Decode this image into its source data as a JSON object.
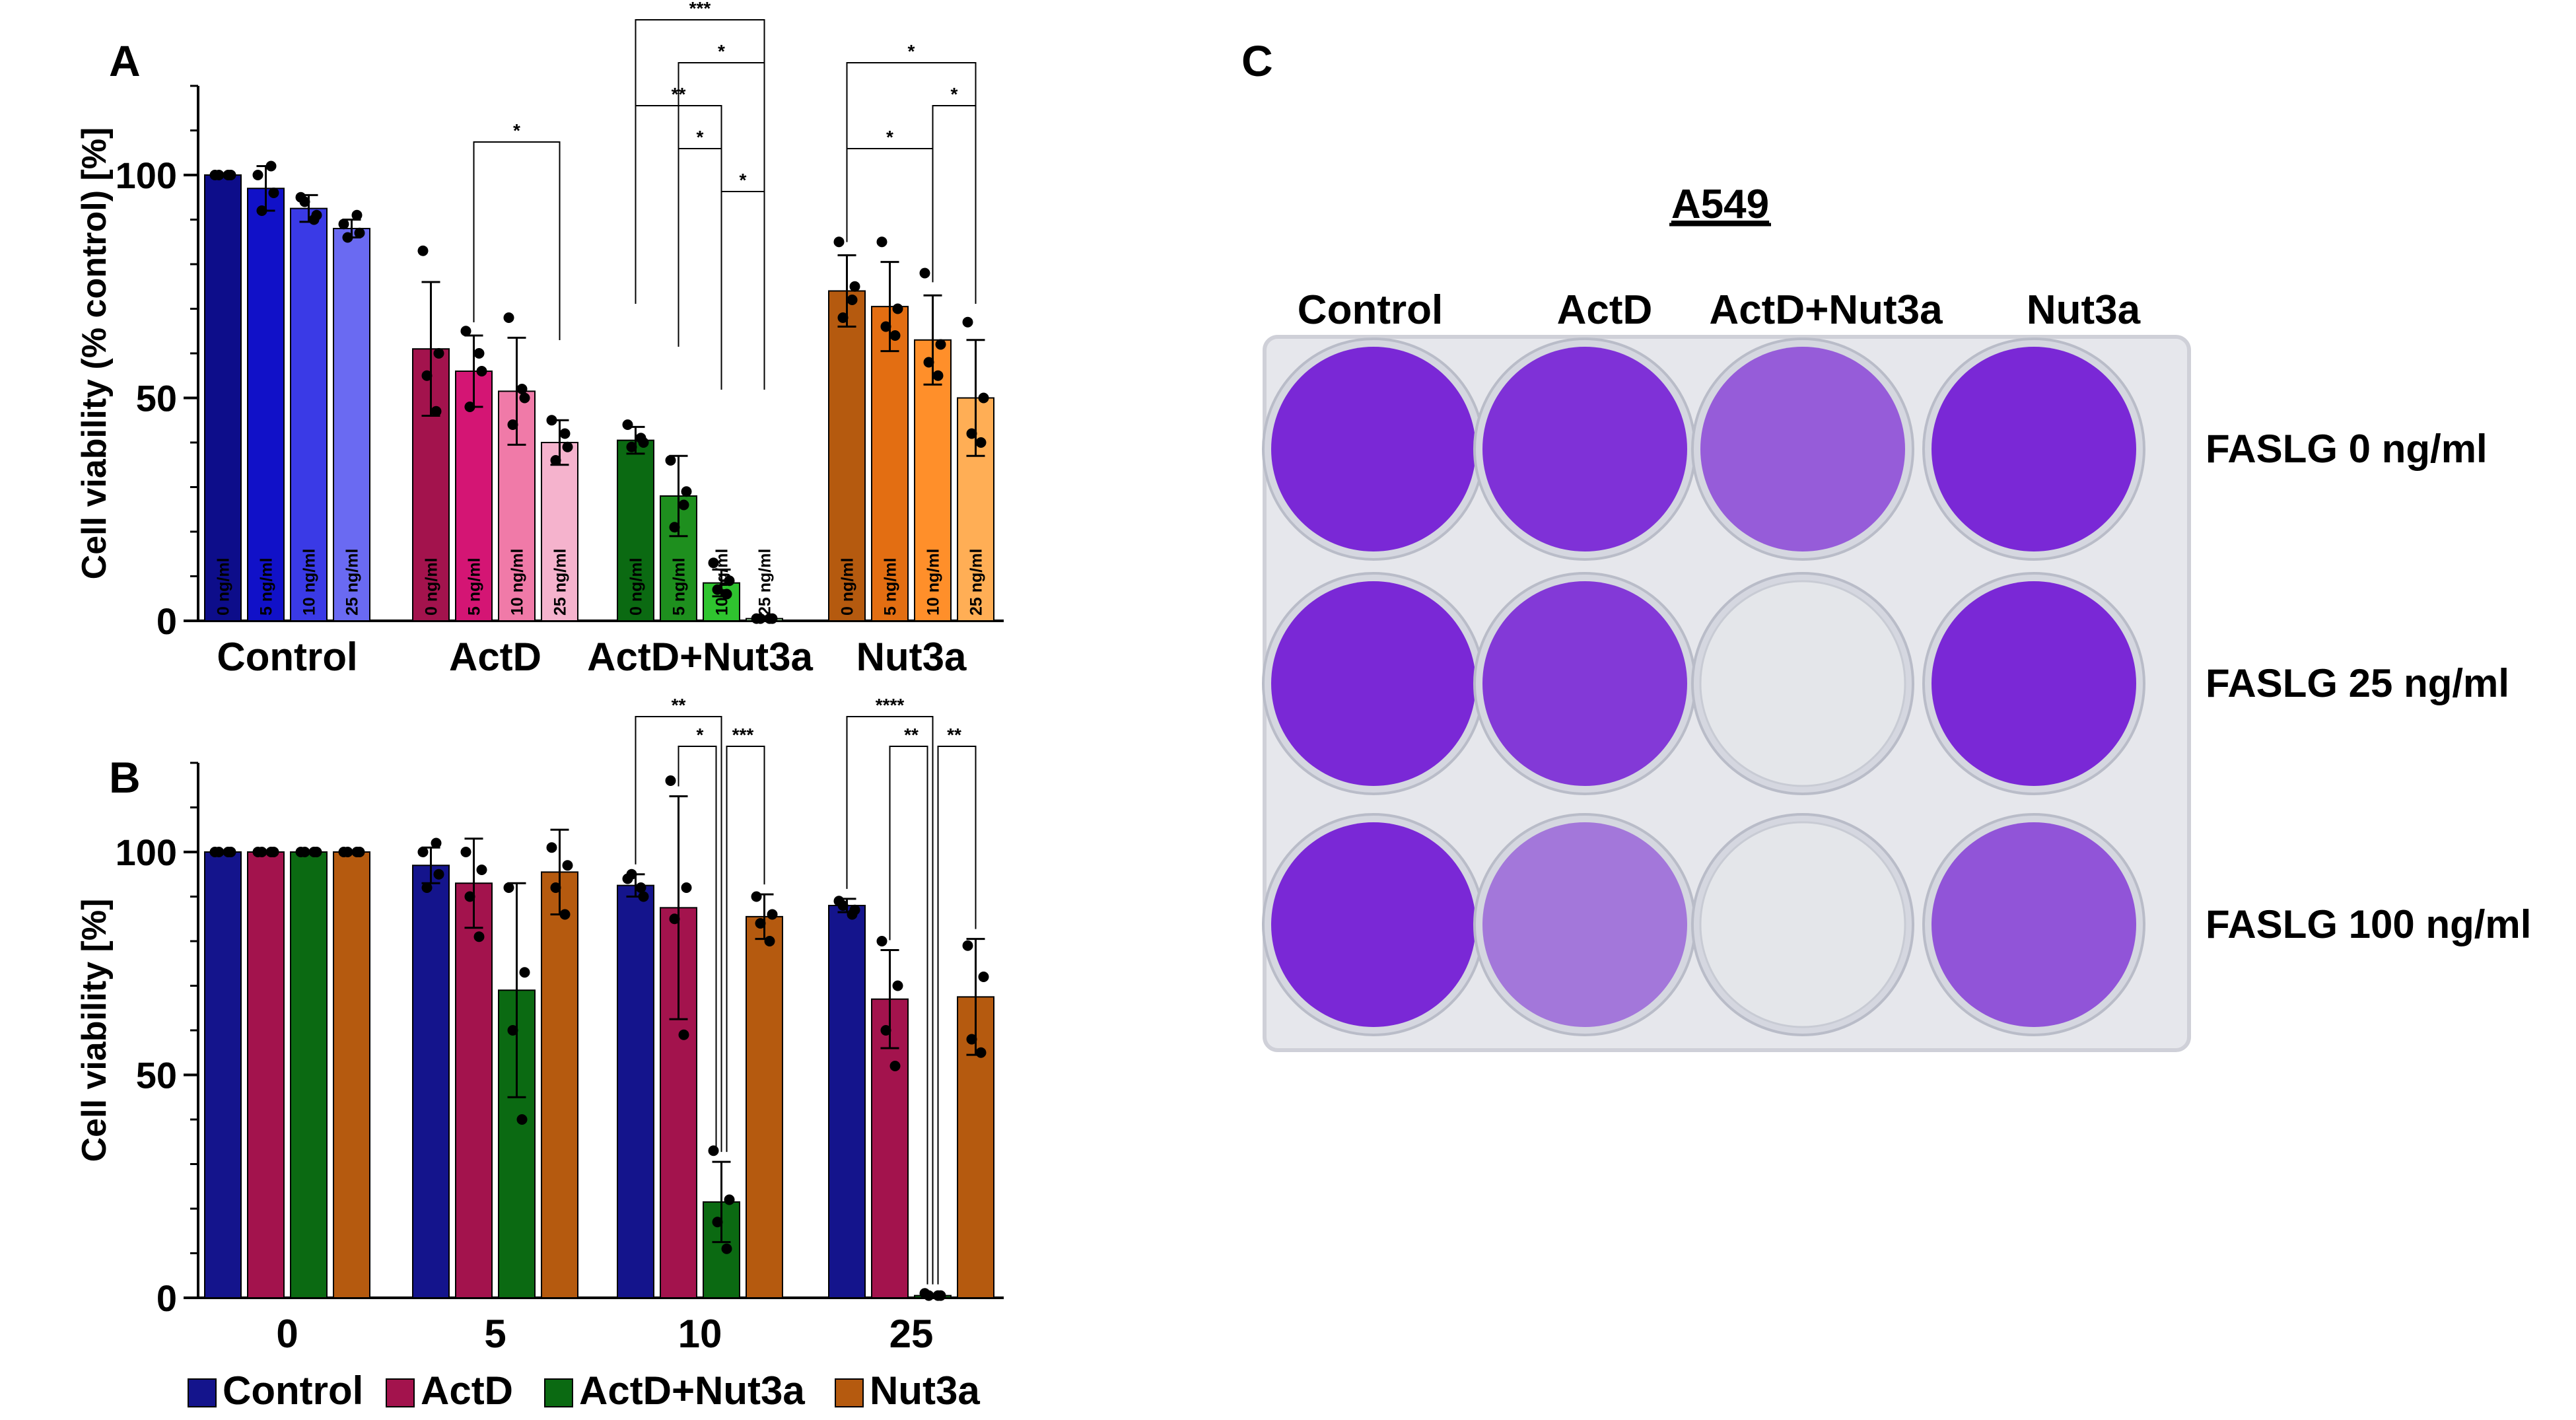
{
  "panels": {
    "a": "A",
    "b": "B",
    "c": "C"
  },
  "chart_data": [
    {
      "type": "bar",
      "panel": "A",
      "ylabel": "Cell viability (% control) [%]",
      "ylim": [
        0,
        120
      ],
      "yticks": [
        0,
        50,
        100
      ],
      "groups": [
        "Control",
        "ActD",
        "ActD+Nut3a",
        "Nut3a"
      ],
      "bar_labels": [
        "0 ng/ml",
        "5 ng/ml",
        "10 ng/ml",
        "25 ng/ml"
      ],
      "series": [
        {
          "group": "Control",
          "values": [
            100,
            97,
            92.5,
            88
          ],
          "errors": [
            0,
            5,
            3,
            2
          ],
          "colors": [
            "#0d0d8a",
            "#1111c8",
            "#3a3ae6",
            "#6a6af2"
          ],
          "points": [
            [
              100,
              100,
              100,
              100
            ],
            [
              100,
              96,
              92,
              102
            ],
            [
              95,
              91,
              94,
              90
            ],
            [
              89,
              87,
              86,
              91
            ]
          ]
        },
        {
          "group": "ActD",
          "values": [
            61,
            56,
            51.5,
            40
          ],
          "errors": [
            15,
            8,
            12,
            5
          ],
          "colors": [
            "#a3134d",
            "#d41574",
            "#f07aa8",
            "#f5b3cd"
          ],
          "points": [
            [
              83,
              60,
              55,
              47
            ],
            [
              65,
              56,
              48,
              60
            ],
            [
              68,
              50,
              44,
              52
            ],
            [
              45,
              39,
              36,
              42
            ]
          ]
        },
        {
          "group": "ActD+Nut3a",
          "values": [
            40.5,
            28,
            8.5,
            0.5
          ],
          "errors": [
            3,
            9,
            3,
            0.5
          ],
          "colors": [
            "#0b6a12",
            "#1e8f1e",
            "#2fc42f",
            "#9be39b"
          ],
          "points": [
            [
              44,
              40,
              39,
              41
            ],
            [
              36,
              29,
              21,
              26
            ],
            [
              13,
              9,
              7,
              6
            ],
            [
              0.5,
              0.5,
              0.5,
              0.5
            ]
          ]
        },
        {
          "group": "Nut3a",
          "values": [
            74,
            70.5,
            63,
            50
          ],
          "errors": [
            8,
            10,
            10,
            13
          ],
          "colors": [
            "#b55a0f",
            "#e36e12",
            "#ff8f2a",
            "#ffae55"
          ],
          "points": [
            [
              85,
              75,
              68,
              72
            ],
            [
              85,
              70,
              66,
              64
            ],
            [
              78,
              62,
              58,
              55
            ],
            [
              67,
              50,
              42,
              40
            ]
          ]
        }
      ],
      "significance": [
        {
          "group": "ActD",
          "from": 1,
          "to": 3,
          "label": "*"
        },
        {
          "group": "ActD+Nut3a",
          "from": 0,
          "to": 3,
          "label": "***"
        },
        {
          "group": "ActD+Nut3a",
          "from": 1,
          "to": 3,
          "label": "*"
        },
        {
          "group": "ActD+Nut3a",
          "from": 0,
          "to": 2,
          "label": "**"
        },
        {
          "group": "ActD+Nut3a",
          "from": 1,
          "to": 2,
          "label": "*"
        },
        {
          "group": "ActD+Nut3a",
          "from": 2,
          "to": 3,
          "label": "*"
        },
        {
          "group": "Nut3a",
          "from": 0,
          "to": 3,
          "label": "*"
        },
        {
          "group": "Nut3a",
          "from": 2,
          "to": 3,
          "label": "*"
        },
        {
          "group": "Nut3a",
          "from": 0,
          "to": 2,
          "label": "*"
        }
      ]
    },
    {
      "type": "bar",
      "panel": "B",
      "ylabel": "Cell viability [%]",
      "ylim": [
        0,
        120
      ],
      "yticks": [
        0,
        50,
        100
      ],
      "categories": [
        "0",
        "5",
        "10",
        "25"
      ],
      "series": [
        {
          "name": "Control",
          "color": "#14148c",
          "values": [
            100,
            97,
            92.5,
            88
          ],
          "errors": [
            0,
            4,
            2.5,
            1.5
          ],
          "points": [
            [
              100,
              100,
              100,
              100
            ],
            [
              100,
              95,
              92,
              102
            ],
            [
              94,
              90,
              95,
              92
            ],
            [
              89,
              87,
              88,
              86
            ]
          ]
        },
        {
          "name": "ActD",
          "color": "#a3134d",
          "values": [
            100,
            93,
            87.5,
            67
          ],
          "errors": [
            0,
            10,
            25,
            11
          ],
          "points": [
            [
              100,
              100,
              100,
              100
            ],
            [
              100,
              96,
              90,
              81
            ],
            [
              116,
              92,
              85,
              59
            ],
            [
              80,
              70,
              60,
              52
            ]
          ]
        },
        {
          "name": "ActD+Nut3a",
          "color": "#0b6a12",
          "values": [
            100,
            69,
            21.5,
            0.5
          ],
          "errors": [
            0,
            24,
            9,
            0.3
          ],
          "points": [
            [
              100,
              100,
              100,
              100
            ],
            [
              92,
              73,
              60,
              40
            ],
            [
              33,
              22,
              17,
              11
            ],
            [
              1,
              0.5,
              0.5,
              0.5
            ]
          ]
        },
        {
          "name": "Nut3a",
          "color": "#b55a0f",
          "values": [
            100,
            95.5,
            85.5,
            67.5
          ],
          "errors": [
            0,
            9.5,
            5,
            13
          ],
          "points": [
            [
              100,
              100,
              100,
              100
            ],
            [
              101,
              97,
              92,
              86
            ],
            [
              90,
              86,
              84,
              80
            ],
            [
              79,
              72,
              58,
              55
            ]
          ]
        }
      ],
      "significance": [
        {
          "category": "10",
          "from": 0,
          "to": 2,
          "label": "**"
        },
        {
          "category": "10",
          "from": 1,
          "to": 2,
          "label": "*"
        },
        {
          "category": "10",
          "from": 2,
          "to": 3,
          "label": "***"
        },
        {
          "category": "25",
          "from": 0,
          "to": 2,
          "label": "****"
        },
        {
          "category": "25",
          "from": 1,
          "to": 2,
          "label": "**"
        },
        {
          "category": "25",
          "from": 2,
          "to": 3,
          "label": "**"
        }
      ]
    }
  ],
  "photo": {
    "title": "A549",
    "columns": [
      "Control",
      "ActD",
      "ActD+Nut3a",
      "Nut3a"
    ],
    "rows": [
      "FASLG 0 ng/ml",
      "FASLG 25 ng/ml",
      "FASLG 100 ng/ml"
    ],
    "well_stain": [
      [
        1.0,
        0.95,
        0.7,
        1.0
      ],
      [
        1.0,
        0.9,
        0.0,
        1.0
      ],
      [
        1.0,
        0.55,
        0.0,
        0.75
      ]
    ],
    "stain_color": "#7a28d6",
    "plate_color": "#e8e9ef"
  }
}
